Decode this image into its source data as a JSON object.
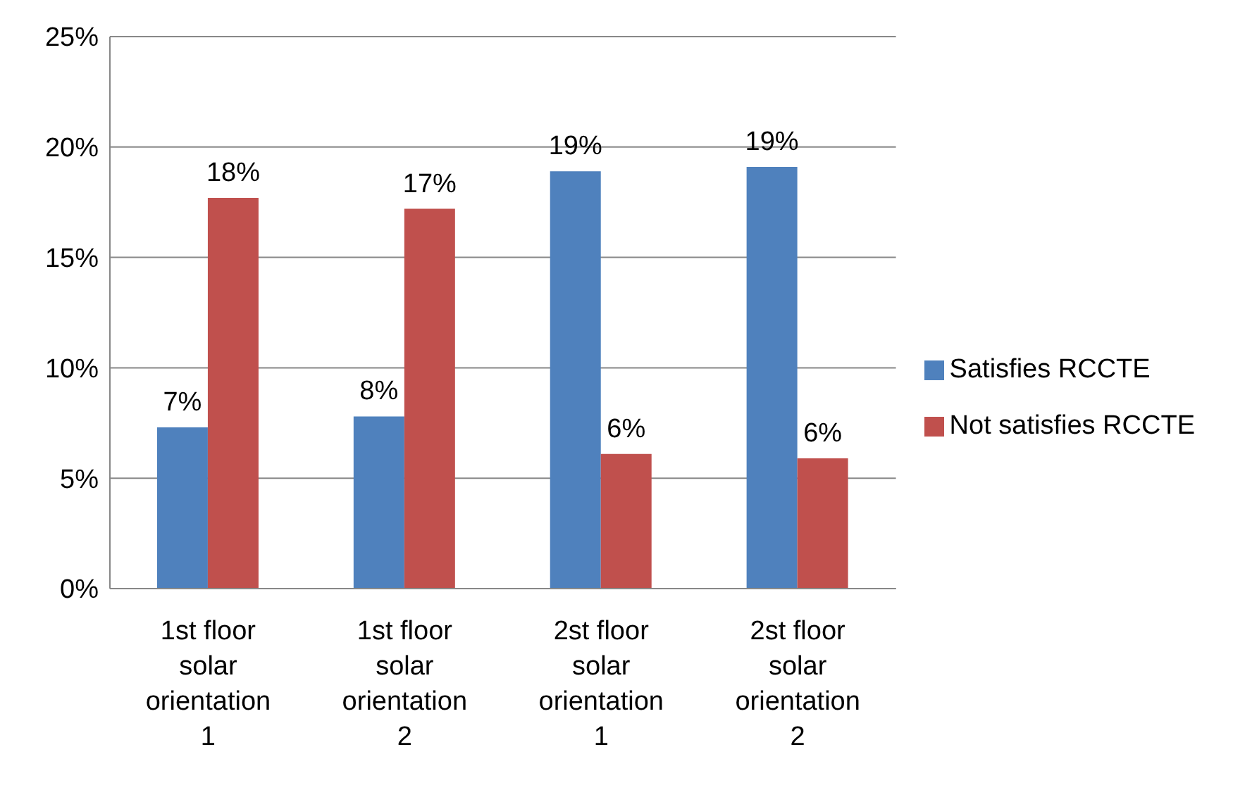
{
  "chart_data": {
    "type": "bar",
    "categories": [
      "1st floor solar orientation 1",
      "1st floor solar orientation 2",
      "2st floor solar orientation 1",
      "2st floor solar orientation 2"
    ],
    "series": [
      {
        "name": "Satisfies RCCTE",
        "color": "#4f81bd",
        "values": [
          7.3,
          7.8,
          18.9,
          19.1
        ],
        "value_labels": [
          "7%",
          "8%",
          "19%",
          "19%"
        ]
      },
      {
        "name": "Not satisfies RCCTE",
        "color": "#c0504d",
        "values": [
          17.7,
          17.2,
          6.1,
          5.9
        ],
        "value_labels": [
          "18%",
          "17%",
          "6%",
          "6%"
        ]
      }
    ],
    "ylim": [
      0,
      25
    ],
    "yticks": [
      {
        "value": 0,
        "label": "0%"
      },
      {
        "value": 5,
        "label": "5%"
      },
      {
        "value": 10,
        "label": "10%"
      },
      {
        "value": 15,
        "label": "15%"
      },
      {
        "value": 20,
        "label": "20%"
      },
      {
        "value": 25,
        "label": "25%"
      }
    ],
    "grid": "y",
    "legend": "right"
  }
}
